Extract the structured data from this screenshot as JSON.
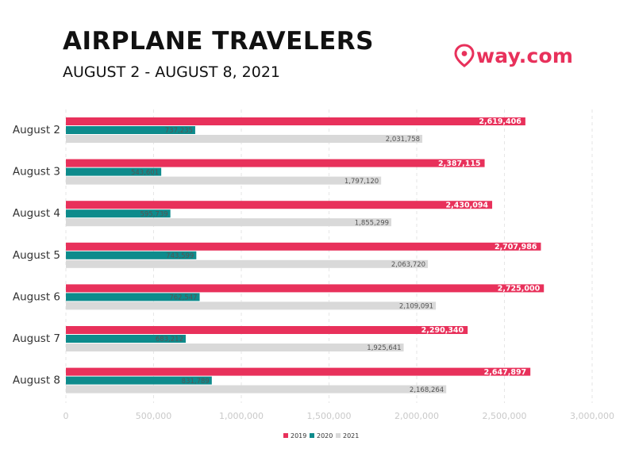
{
  "title": "AIRPLANE TRAVELERS",
  "subtitle": "AUGUST 2 - AUGUST 8, 2021",
  "logo": {
    "text": "way.com",
    "icon": "location-pin-icon"
  },
  "colors": {
    "2019": "#e8315b",
    "2020": "#0e8b8c",
    "2021": "#d9d9d9",
    "brand": "#e8315b",
    "tick": "#c9c9c9"
  },
  "chart_data": {
    "type": "bar",
    "orientation": "horizontal",
    "title": "AIRPLANE TRAVELERS",
    "subtitle": "AUGUST 2 - AUGUST 8, 2021",
    "xlabel": "",
    "ylabel": "",
    "categories": [
      "August 2",
      "August 3",
      "August 4",
      "August 5",
      "August 6",
      "August 7",
      "August 8"
    ],
    "series": [
      {
        "name": "2019",
        "values": [
          2619406,
          2387115,
          2430094,
          2707986,
          2725000,
          2290340,
          2647897
        ],
        "labels": [
          "2,619,406",
          "2,387,115",
          "2,430,094",
          "2,707,986",
          "2,725,000",
          "2,290,340",
          "2,647,897"
        ]
      },
      {
        "name": "2020",
        "values": [
          737235,
          543601,
          595739,
          743599,
          762547,
          683212,
          831789
        ],
        "labels": [
          "737,235",
          "543,601",
          "595,739",
          "743,599",
          "762,547",
          "683,212",
          "831,789"
        ]
      },
      {
        "name": "2021",
        "values": [
          2031758,
          1797120,
          1855299,
          2063720,
          2109091,
          1925641,
          2168264
        ],
        "labels": [
          "2,031,758",
          "1,797,120",
          "1,855,299",
          "2,063,720",
          "2,109,091",
          "1,925,641",
          "2,168,264"
        ]
      }
    ],
    "xlim": [
      0,
      3000000
    ],
    "x_ticks": [
      "0",
      "500,000",
      "1,000,000",
      "1,500,000",
      "2,000,000",
      "2,500,000",
      "3,000,000"
    ],
    "x_tick_values": [
      0,
      500000,
      1000000,
      1500000,
      2000000,
      2500000,
      3000000
    ],
    "grid": true,
    "grid_style": "dashed-vertical",
    "legend": {
      "position": "bottom",
      "entries": [
        "2019",
        "2020",
        "2021"
      ]
    }
  }
}
